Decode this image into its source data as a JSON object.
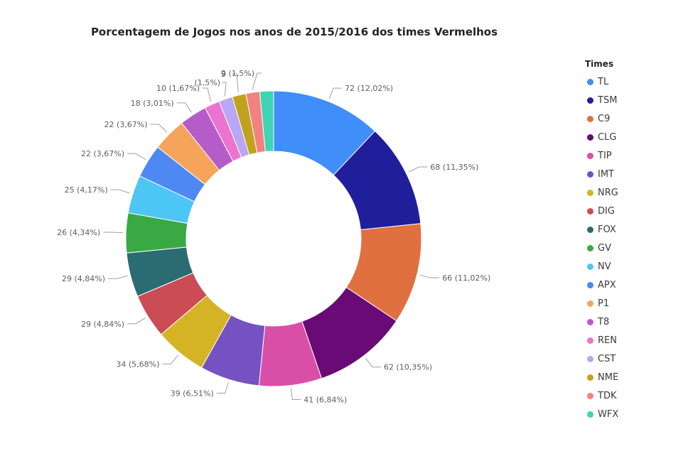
{
  "chart_data": {
    "type": "pie",
    "donut": true,
    "title": "Porcentagem de Jogos nos anos de 2015/2016 dos times Vermelhos",
    "legend_title": "Times",
    "legend_position": "right",
    "slices": [
      {
        "name": "TL",
        "value": 72,
        "label": "72 (12,02%)",
        "color": "#3F8EF9"
      },
      {
        "name": "TSM",
        "value": 68,
        "label": "68 (11,35%)",
        "color": "#201E9A"
      },
      {
        "name": "C9",
        "value": 66,
        "label": "66 (11,02%)",
        "color": "#E0703F"
      },
      {
        "name": "CLG",
        "value": 62,
        "label": "62 (10,35%)",
        "color": "#6A0A76"
      },
      {
        "name": "TIP",
        "value": 41,
        "label": "41 (6,84%)",
        "color": "#D94FA7"
      },
      {
        "name": "IMT",
        "value": 39,
        "label": "39 (6,51%)",
        "color": "#7651C1"
      },
      {
        "name": "NRG",
        "value": 34,
        "label": "34 (5,68%)",
        "color": "#D4B424"
      },
      {
        "name": "DIG",
        "value": 29,
        "label": "29 (4,84%)",
        "color": "#CB4C54"
      },
      {
        "name": "FOX",
        "value": 29,
        "label": "29 (4,84%)",
        "color": "#2A6C72"
      },
      {
        "name": "GV",
        "value": 26,
        "label": "26 (4,34%)",
        "color": "#39AA43"
      },
      {
        "name": "NV",
        "value": 25,
        "label": "25 (4,17%)",
        "color": "#4CC6F5"
      },
      {
        "name": "APX",
        "value": 22,
        "label": "22 (3,67%)",
        "color": "#4E88F3"
      },
      {
        "name": "P1",
        "value": 22,
        "label": "22 (3,67%)",
        "color": "#F6A45C"
      },
      {
        "name": "T8",
        "value": 18,
        "label": "18 (3,01%)",
        "color": "#B65CC8"
      },
      {
        "name": "REN",
        "value": 10,
        "label": "10 (1,67%)",
        "color": "#EB74D0"
      },
      {
        "name": "CST",
        "value": 9,
        "label": "(1,5%)",
        "color": "#B8A6F6"
      },
      {
        "name": "NME",
        "value": 9,
        "label": "9",
        "color": "#C1A21F"
      },
      {
        "name": "TDK",
        "value": 9,
        "label": "9 (1,5%)",
        "color": "#F38181"
      },
      {
        "name": "WFX",
        "value": 9,
        "label": "",
        "color": "#3FD4B4"
      }
    ]
  }
}
